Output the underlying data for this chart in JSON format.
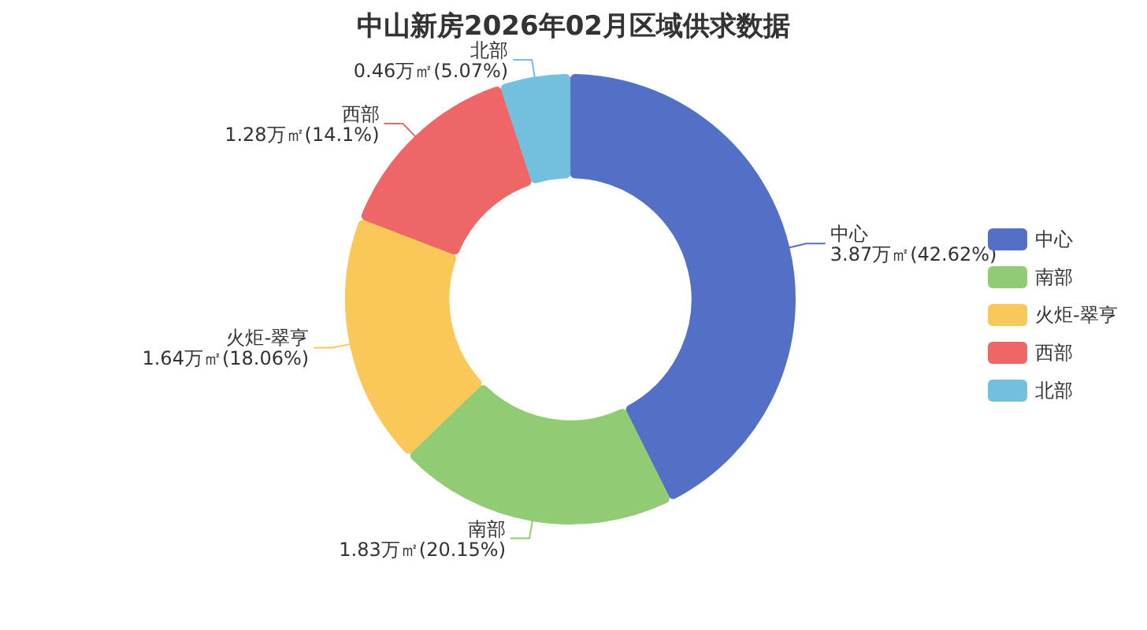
{
  "chart_data": {
    "type": "donut",
    "title": "中山新房2026年02月区域供求数据",
    "categories": [
      "中心",
      "南部",
      "火炬-翠亨",
      "西部",
      "北部"
    ],
    "values": [
      3.87,
      1.83,
      1.64,
      1.28,
      0.46
    ],
    "colors": [
      "#5470c6",
      "#91cc75",
      "#fac858",
      "#ee6666",
      "#73c0de"
    ],
    "value_labels": [
      "3.87万㎡(42.62%)",
      "1.83万㎡(20.15%)",
      "1.64万㎡(18.06%)",
      "1.28万㎡(14.1%)",
      "0.46万㎡(5.07%)"
    ],
    "legend": "right"
  }
}
